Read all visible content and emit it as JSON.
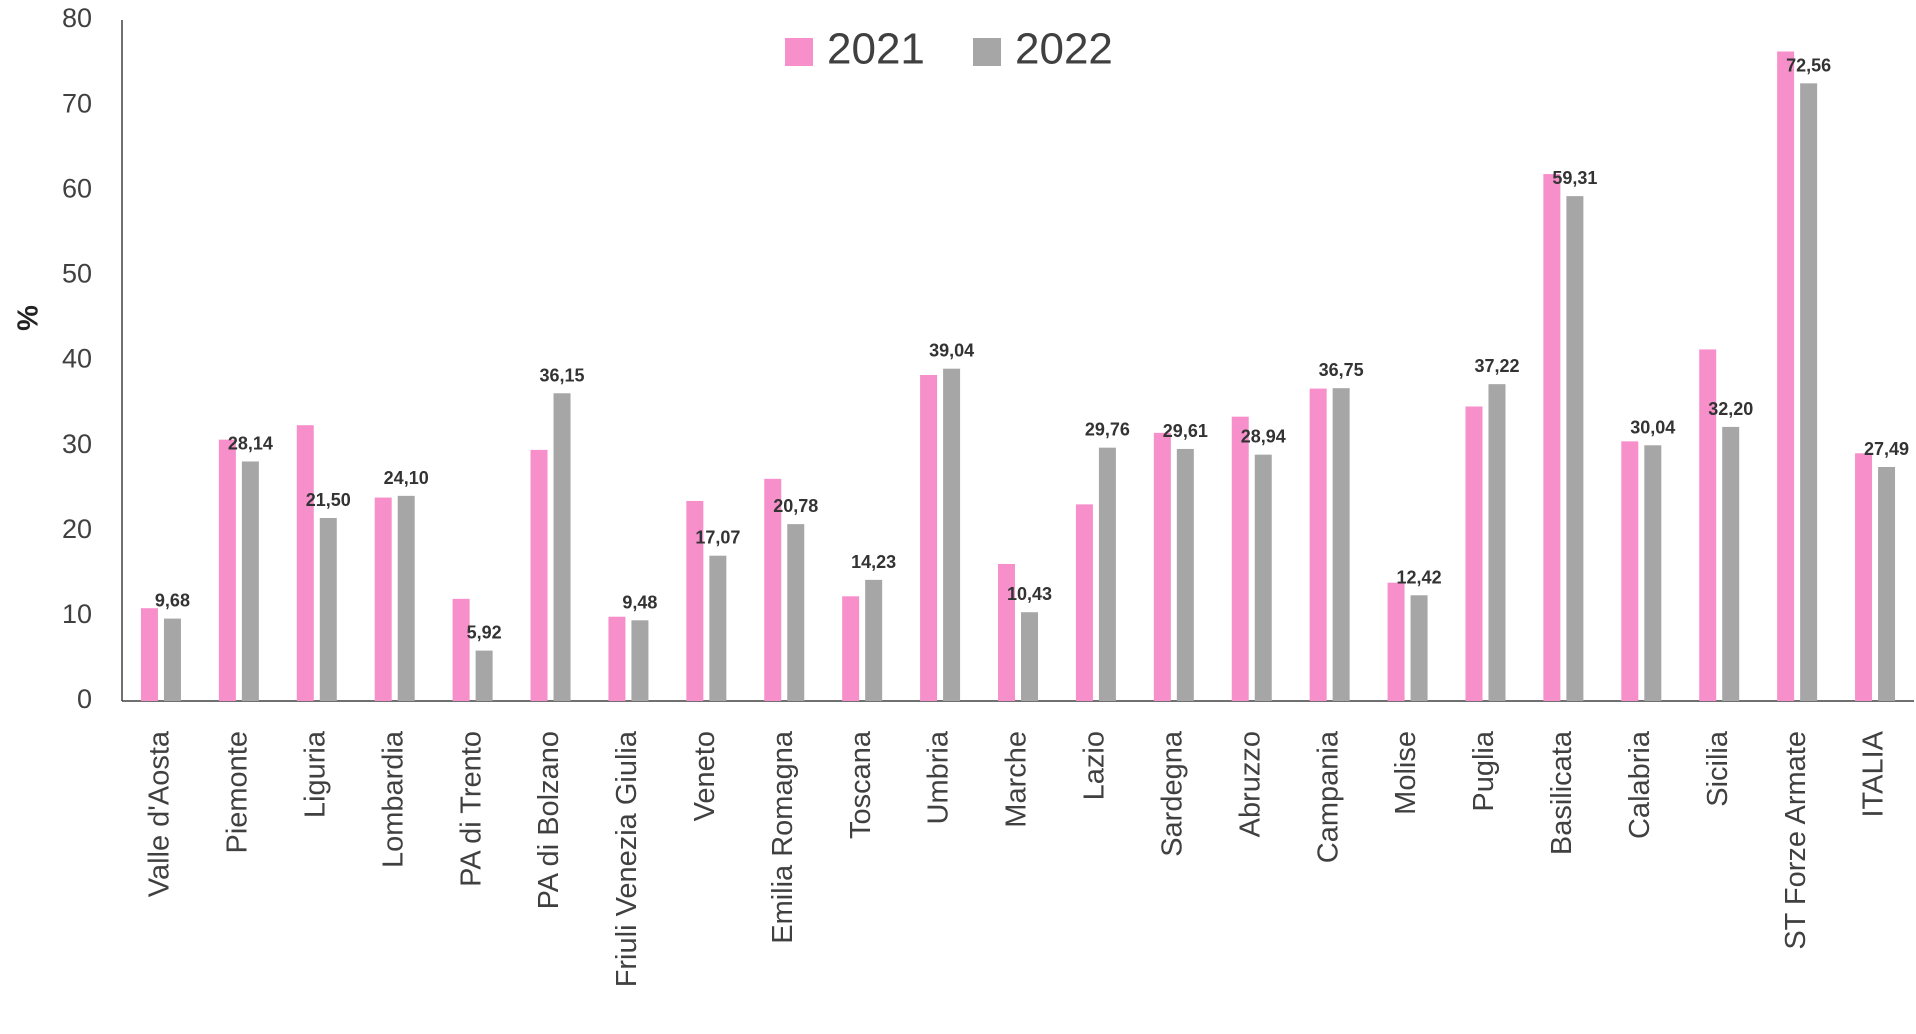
{
  "chart_data": {
    "type": "bar",
    "ylabel": "%",
    "categories": [
      "Valle d'Aosta",
      "Piemonte",
      "Liguria",
      "Lombardia",
      "PA di Trento",
      "PA di Bolzano",
      "Friuli Venezia Giulia",
      "Veneto",
      "Emilia Romagna",
      "Toscana",
      "Umbria",
      "Marche",
      "Lazio",
      "Sardegna",
      "Abruzzo",
      "Campania",
      "Molise",
      "Puglia",
      "Basilicata",
      "Calabria",
      "Sicilia",
      "ST Forze Armate",
      "ITALIA"
    ],
    "series": [
      {
        "name": "2021",
        "color": "#f78fca",
        "values": [
          10.9,
          30.7,
          32.4,
          23.9,
          12.0,
          29.5,
          9.9,
          23.5,
          26.1,
          12.3,
          38.3,
          16.1,
          23.1,
          31.5,
          33.4,
          36.7,
          13.9,
          34.6,
          61.9,
          30.5,
          41.3,
          76.3,
          29.1
        ]
      },
      {
        "name": "2022",
        "color": "#a6a6a6",
        "values": [
          9.68,
          28.14,
          21.5,
          24.1,
          5.92,
          36.15,
          9.48,
          17.07,
          20.78,
          14.23,
          39.04,
          10.43,
          29.76,
          29.61,
          28.94,
          36.75,
          12.42,
          37.22,
          59.31,
          30.04,
          32.2,
          72.56,
          27.49
        ],
        "value_labels": [
          "9,68",
          "28,14",
          "21,50",
          "24,10",
          "5,92",
          "36,15",
          "9,48",
          "17,07",
          "20,78",
          "14,23",
          "39,04",
          "10,43",
          "29,76",
          "29,61",
          "28,94",
          "36,75",
          "12,42",
          "37,22",
          "59,31",
          "30,04",
          "32,20",
          "72,56",
          "27,49"
        ]
      }
    ],
    "ylim": [
      0,
      80
    ],
    "yticks": [
      0,
      10,
      20,
      30,
      40,
      50,
      60,
      70,
      80
    ],
    "grid": false,
    "legend": "top"
  }
}
